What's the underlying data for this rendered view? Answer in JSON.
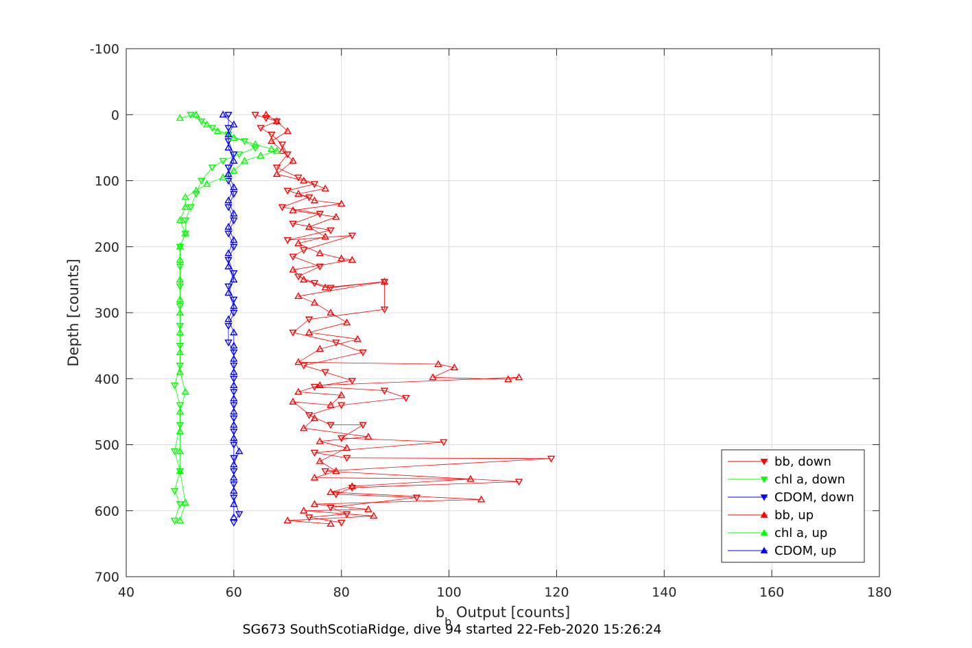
{
  "chart_data": {
    "type": "scatter",
    "xlabel_main": "b",
    "xlabel_sub": "b",
    "xlabel_rest": " Output [counts]",
    "ylabel": "Depth [counts]",
    "caption": "SG673 SouthScotiaRidge, dive 94 started 22-Feb-2020 15:26:24",
    "xlim": [
      40,
      180
    ],
    "ylim": [
      -100,
      700
    ],
    "y_reversed": true,
    "grid": true,
    "legend_position": "bottom-right",
    "x_ticks": [
      "40",
      "60",
      "80",
      "100",
      "120",
      "140",
      "160",
      "180"
    ],
    "y_ticks": [
      "-100",
      "0",
      "100",
      "200",
      "300",
      "400",
      "500",
      "600",
      "700"
    ],
    "series": [
      {
        "name": "bb, down",
        "color": "#ff0000",
        "marker": "triangle-down",
        "points": [
          [
            64,
            0
          ],
          [
            66,
            5
          ],
          [
            68,
            10
          ],
          [
            65,
            20
          ],
          [
            67,
            30
          ],
          [
            69,
            45
          ],
          [
            70,
            60
          ],
          [
            68,
            80
          ],
          [
            72,
            95
          ],
          [
            75,
            105
          ],
          [
            70,
            115
          ],
          [
            74,
            125
          ],
          [
            69,
            140
          ],
          [
            76,
            150
          ],
          [
            71,
            165
          ],
          [
            78,
            175
          ],
          [
            70,
            190
          ],
          [
            82,
            183
          ],
          [
            73,
            205
          ],
          [
            71,
            215
          ],
          [
            76,
            230
          ],
          [
            72,
            245
          ],
          [
            75,
            255
          ],
          [
            78,
            262
          ],
          [
            88,
            253
          ],
          [
            88,
            295
          ],
          [
            74,
            310
          ],
          [
            71,
            330
          ],
          [
            79,
            345
          ],
          [
            84,
            360
          ],
          [
            73,
            380
          ],
          [
            77,
            390
          ],
          [
            82,
            403
          ],
          [
            75,
            412
          ],
          [
            88,
            418
          ],
          [
            92,
            429
          ],
          [
            80,
            440
          ],
          [
            74,
            455
          ],
          [
            78,
            470
          ],
          [
            84,
            470
          ],
          [
            80,
            490
          ],
          [
            99,
            496
          ],
          [
            75,
            512
          ],
          [
            81,
            520
          ],
          [
            119,
            521
          ],
          [
            77,
            540
          ],
          [
            113,
            556
          ],
          [
            82,
            565
          ],
          [
            79,
            575
          ],
          [
            94,
            580
          ],
          [
            78,
            595
          ],
          [
            81,
            605
          ],
          [
            74,
            610
          ],
          [
            80,
            618
          ]
        ]
      },
      {
        "name": "chl a, down",
        "color": "#00ff00",
        "marker": "triangle-down",
        "points": [
          [
            52,
            0
          ],
          [
            54,
            10
          ],
          [
            56,
            20
          ],
          [
            59,
            30
          ],
          [
            62,
            40
          ],
          [
            64,
            50
          ],
          [
            61,
            60
          ],
          [
            58,
            70
          ],
          [
            56,
            80
          ],
          [
            54,
            100
          ],
          [
            53,
            120
          ],
          [
            52,
            140
          ],
          [
            51,
            160
          ],
          [
            51,
            180
          ],
          [
            50,
            200
          ],
          [
            50,
            230
          ],
          [
            50,
            260
          ],
          [
            50,
            290
          ],
          [
            50,
            320
          ],
          [
            50,
            350
          ],
          [
            50,
            380
          ],
          [
            49,
            410
          ],
          [
            50,
            440
          ],
          [
            50,
            470
          ],
          [
            49,
            510
          ],
          [
            50,
            540
          ],
          [
            49,
            570
          ],
          [
            50,
            590
          ],
          [
            49,
            615
          ]
        ]
      },
      {
        "name": "CDOM, down",
        "color": "#0000ff",
        "marker": "triangle-down",
        "points": [
          [
            59,
            0
          ],
          [
            59,
            20
          ],
          [
            59,
            40
          ],
          [
            60,
            60
          ],
          [
            59,
            80
          ],
          [
            59,
            100
          ],
          [
            60,
            120
          ],
          [
            59,
            140
          ],
          [
            60,
            160
          ],
          [
            59,
            180
          ],
          [
            60,
            200
          ],
          [
            59,
            220
          ],
          [
            60,
            240
          ],
          [
            59,
            260
          ],
          [
            60,
            280
          ],
          [
            60,
            300
          ],
          [
            59,
            320
          ],
          [
            59,
            345
          ],
          [
            60,
            360
          ],
          [
            60,
            380
          ],
          [
            60,
            400
          ],
          [
            60,
            420
          ],
          [
            60,
            440
          ],
          [
            60,
            460
          ],
          [
            60,
            480
          ],
          [
            60,
            500
          ],
          [
            60,
            520
          ],
          [
            60,
            540
          ],
          [
            60,
            560
          ],
          [
            60,
            580
          ],
          [
            61,
            605
          ],
          [
            60,
            618
          ]
        ]
      },
      {
        "name": "bb, up",
        "color": "#ff0000",
        "marker": "triangle-up",
        "points": [
          [
            66,
            0
          ],
          [
            68,
            10
          ],
          [
            70,
            25
          ],
          [
            67,
            40
          ],
          [
            69,
            55
          ],
          [
            71,
            70
          ],
          [
            68,
            90
          ],
          [
            73,
            100
          ],
          [
            77,
            112
          ],
          [
            72,
            120
          ],
          [
            75,
            130
          ],
          [
            80,
            135
          ],
          [
            71,
            145
          ],
          [
            79,
            155
          ],
          [
            74,
            170
          ],
          [
            77,
            185
          ],
          [
            72,
            195
          ],
          [
            76,
            210
          ],
          [
            80,
            218
          ],
          [
            82,
            220
          ],
          [
            71,
            235
          ],
          [
            73,
            250
          ],
          [
            77,
            262
          ],
          [
            88,
            253
          ],
          [
            72,
            275
          ],
          [
            75,
            285
          ],
          [
            78,
            300
          ],
          [
            81,
            315
          ],
          [
            74,
            330
          ],
          [
            83,
            340
          ],
          [
            76,
            355
          ],
          [
            72,
            375
          ],
          [
            98,
            378
          ],
          [
            101,
            383
          ],
          [
            97,
            398
          ],
          [
            111,
            401
          ],
          [
            113,
            398
          ],
          [
            76,
            410
          ],
          [
            72,
            420
          ],
          [
            80,
            425
          ],
          [
            78,
            440
          ],
          [
            71,
            435
          ],
          [
            75,
            460
          ],
          [
            73,
            475
          ],
          [
            85,
            488
          ],
          [
            76,
            495
          ],
          [
            81,
            505
          ],
          [
            76,
            525
          ],
          [
            79,
            540
          ],
          [
            75,
            550
          ],
          [
            104,
            552
          ],
          [
            82,
            563
          ],
          [
            78,
            572
          ],
          [
            106,
            583
          ],
          [
            75,
            590
          ],
          [
            85,
            598
          ],
          [
            73,
            600
          ],
          [
            86,
            608
          ],
          [
            70,
            615
          ],
          [
            78,
            620
          ]
        ]
      },
      {
        "name": "chl a, up",
        "color": "#00ff00",
        "marker": "triangle-up",
        "points": [
          [
            50,
            5
          ],
          [
            53,
            0
          ],
          [
            55,
            15
          ],
          [
            57,
            25
          ],
          [
            60,
            35
          ],
          [
            64,
            45
          ],
          [
            67,
            52
          ],
          [
            68,
            55
          ],
          [
            65,
            62
          ],
          [
            62,
            70
          ],
          [
            60,
            85
          ],
          [
            58,
            95
          ],
          [
            55,
            105
          ],
          [
            53,
            115
          ],
          [
            51,
            125
          ],
          [
            51,
            140
          ],
          [
            50,
            160
          ],
          [
            51,
            180
          ],
          [
            50,
            200
          ],
          [
            50,
            220
          ],
          [
            50,
            250
          ],
          [
            50,
            280
          ],
          [
            50,
            300
          ],
          [
            50,
            330
          ],
          [
            50,
            360
          ],
          [
            50,
            390
          ],
          [
            51,
            420
          ],
          [
            50,
            450
          ],
          [
            50,
            480
          ],
          [
            50,
            510
          ],
          [
            50,
            540
          ],
          [
            51,
            588
          ],
          [
            50,
            615
          ]
        ]
      },
      {
        "name": "CDOM, up",
        "color": "#0000ff",
        "marker": "triangle-up",
        "points": [
          [
            58,
            0
          ],
          [
            60,
            15
          ],
          [
            59,
            30
          ],
          [
            59,
            50
          ],
          [
            60,
            70
          ],
          [
            59,
            90
          ],
          [
            60,
            110
          ],
          [
            59,
            130
          ],
          [
            60,
            150
          ],
          [
            59,
            170
          ],
          [
            60,
            190
          ],
          [
            59,
            210
          ],
          [
            59,
            230
          ],
          [
            60,
            250
          ],
          [
            59,
            270
          ],
          [
            60,
            290
          ],
          [
            59,
            310
          ],
          [
            60,
            330
          ],
          [
            60,
            350
          ],
          [
            60,
            370
          ],
          [
            60,
            390
          ],
          [
            60,
            410
          ],
          [
            60,
            430
          ],
          [
            60,
            450
          ],
          [
            60,
            470
          ],
          [
            60,
            490
          ],
          [
            61,
            510
          ],
          [
            60,
            530
          ],
          [
            60,
            550
          ],
          [
            60,
            570
          ],
          [
            60,
            590
          ],
          [
            60,
            610
          ]
        ]
      }
    ]
  }
}
